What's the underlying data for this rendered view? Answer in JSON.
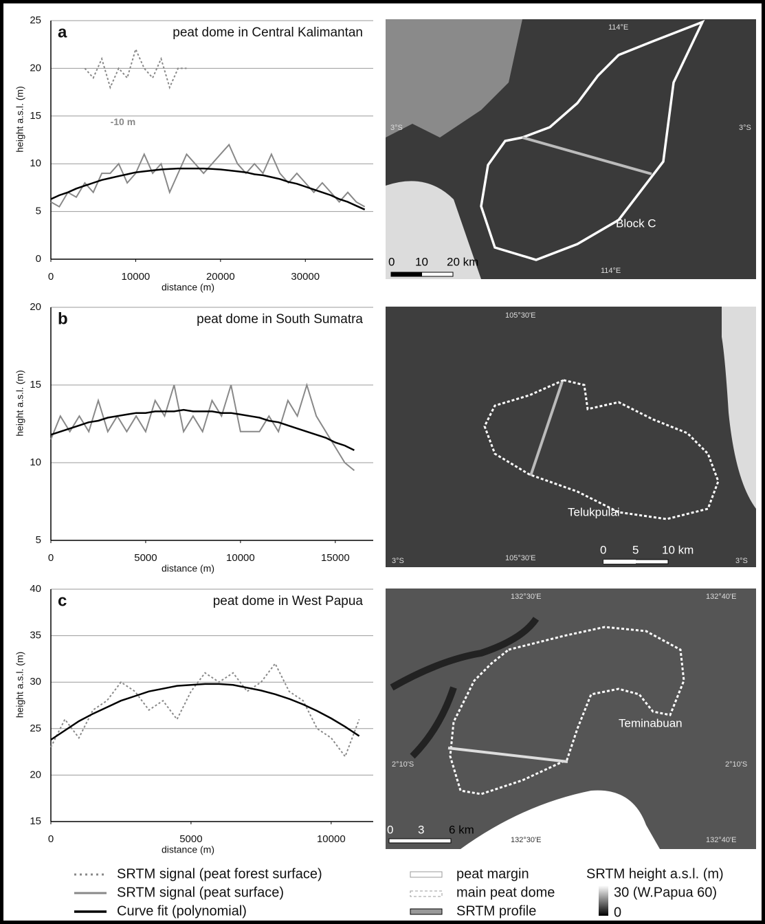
{
  "chart_data": [
    {
      "type": "line",
      "panel": "a",
      "title": "peat dome in Central Kalimantan",
      "x_label": "distance (m)",
      "y_label": "height a.s.l. (m)",
      "annotation": "-10 m",
      "xlim": [
        0,
        38000
      ],
      "xticks": [
        0,
        10000,
        20000,
        30000
      ],
      "ylim": [
        0,
        25
      ],
      "yticks": [
        0,
        5,
        10,
        15,
        20,
        25
      ],
      "grid": true,
      "x": [
        0,
        1000,
        2000,
        3000,
        4000,
        5000,
        6000,
        7000,
        8000,
        9000,
        10000,
        11000,
        12000,
        13000,
        14000,
        15000,
        16000,
        17000,
        18000,
        19000,
        20000,
        21000,
        22000,
        23000,
        24000,
        25000,
        26000,
        27000,
        28000,
        29000,
        30000,
        31000,
        32000,
        33000,
        34000,
        35000,
        36000,
        37000
      ],
      "series": [
        {
          "name": "SRTM signal (peat forest surface)",
          "color": "#888888",
          "dash": true,
          "width": 2,
          "values": [
            null,
            null,
            null,
            null,
            20,
            19,
            21,
            18,
            20,
            19,
            22,
            20,
            19,
            21,
            18,
            20,
            20,
            null,
            null,
            null,
            null,
            null,
            null,
            null,
            null,
            null,
            null,
            null,
            null,
            null,
            null,
            null,
            null,
            null,
            null,
            null,
            null,
            null
          ]
        },
        {
          "name": "SRTM signal (peat surface)",
          "color": "#888888",
          "dash": false,
          "width": 2,
          "values": [
            6,
            5.5,
            7,
            6.5,
            8,
            7,
            9,
            9,
            10,
            8,
            9,
            11,
            9,
            10,
            7,
            9,
            11,
            10,
            9,
            10,
            11,
            12,
            10,
            9,
            10,
            9,
            11,
            9,
            8,
            9,
            8,
            7,
            8,
            7,
            6,
            7,
            6,
            5.5
          ]
        },
        {
          "name": "Curve fit (polynomial)",
          "color": "#000000",
          "dash": false,
          "width": 2.5,
          "values": [
            6.3,
            6.7,
            7.0,
            7.4,
            7.7,
            8.0,
            8.3,
            8.5,
            8.7,
            8.9,
            9.1,
            9.2,
            9.3,
            9.4,
            9.45,
            9.5,
            9.5,
            9.5,
            9.5,
            9.45,
            9.4,
            9.3,
            9.2,
            9.1,
            8.9,
            8.8,
            8.6,
            8.4,
            8.1,
            7.9,
            7.6,
            7.3,
            7.0,
            6.7,
            6.3,
            6.0,
            5.6,
            5.2
          ]
        }
      ]
    },
    {
      "type": "line",
      "panel": "b",
      "title": "peat dome in South Sumatra",
      "x_label": "distance (m)",
      "y_label": "height a.s.l. (m)",
      "xlim": [
        0,
        17000
      ],
      "xticks": [
        0,
        5000,
        10000,
        15000
      ],
      "ylim": [
        5,
        20
      ],
      "yticks": [
        5,
        10,
        15,
        20
      ],
      "grid": true,
      "x": [
        0,
        500,
        1000,
        1500,
        2000,
        2500,
        3000,
        3500,
        4000,
        4500,
        5000,
        5500,
        6000,
        6500,
        7000,
        7500,
        8000,
        8500,
        9000,
        9500,
        10000,
        10500,
        11000,
        11500,
        12000,
        12500,
        13000,
        13500,
        14000,
        14500,
        15000,
        15500,
        16000
      ],
      "series": [
        {
          "name": "SRTM signal (peat surface)",
          "color": "#888888",
          "dash": false,
          "width": 2,
          "values": [
            11.5,
            13,
            12,
            13,
            12,
            14,
            12,
            13,
            12,
            13,
            12,
            14,
            13,
            15,
            12,
            13,
            12,
            14,
            13,
            15,
            12,
            12,
            12,
            13,
            12,
            14,
            13,
            15,
            13,
            12,
            11,
            10,
            9.5
          ]
        },
        {
          "name": "Curve fit (polynomial)",
          "color": "#000000",
          "dash": false,
          "width": 2.5,
          "values": [
            11.8,
            12.0,
            12.2,
            12.4,
            12.6,
            12.7,
            12.9,
            13.0,
            13.1,
            13.2,
            13.2,
            13.3,
            13.3,
            13.3,
            13.4,
            13.3,
            13.3,
            13.3,
            13.2,
            13.2,
            13.1,
            13.0,
            12.9,
            12.7,
            12.6,
            12.4,
            12.2,
            12.0,
            11.8,
            11.6,
            11.3,
            11.1,
            10.8
          ]
        }
      ]
    },
    {
      "type": "line",
      "panel": "c",
      "title": "peat dome in West Papua",
      "x_label": "distance (m)",
      "y_label": "height a.s.l. (m)",
      "xlim": [
        0,
        11500
      ],
      "xticks": [
        0,
        5000,
        10000
      ],
      "ylim": [
        15,
        40
      ],
      "yticks": [
        15,
        20,
        25,
        30,
        35,
        40
      ],
      "grid": true,
      "x": [
        0,
        500,
        1000,
        1500,
        2000,
        2500,
        3000,
        3500,
        4000,
        4500,
        5000,
        5500,
        6000,
        6500,
        7000,
        7500,
        8000,
        8500,
        9000,
        9500,
        10000,
        10500,
        11000
      ],
      "series": [
        {
          "name": "SRTM signal (peat forest surface)",
          "color": "#888888",
          "dash": true,
          "width": 2,
          "values": [
            23,
            26,
            24,
            27,
            28,
            30,
            29,
            27,
            28,
            26,
            29,
            31,
            30,
            31,
            29,
            30,
            32,
            29,
            28,
            25,
            24,
            22,
            26
          ]
        },
        {
          "name": "Curve fit (polynomial)",
          "color": "#000000",
          "dash": false,
          "width": 2.5,
          "values": [
            23.8,
            24.8,
            25.8,
            26.6,
            27.3,
            28.0,
            28.5,
            29.0,
            29.3,
            29.6,
            29.7,
            29.8,
            29.8,
            29.7,
            29.4,
            29.1,
            28.7,
            28.2,
            27.6,
            26.9,
            26.1,
            25.2,
            24.2
          ]
        }
      ]
    }
  ],
  "maps": [
    {
      "labels": [
        "114°E",
        "3°S",
        "3°S",
        "Block C",
        "0",
        "10",
        "20 km",
        "114°E"
      ]
    },
    {
      "labels": [
        "105°30'E",
        "Telukpulai",
        "0",
        "5",
        "10 km",
        "3°S",
        "105°30'E",
        "3°S"
      ]
    },
    {
      "labels": [
        "132°30'E",
        "132°40'E",
        "Teminabuan",
        "2°10'S",
        "2°10'S",
        "0",
        "3",
        "6 km",
        "132°30'E",
        "132°40'E"
      ]
    }
  ],
  "map_legend": {
    "items": [
      "peat margin",
      "main peat dome",
      "SRTM profile"
    ],
    "scale_title": "SRTM height a.s.l. (m)",
    "scale_max": "30 (W.Papua 60)",
    "scale_min": "0"
  }
}
